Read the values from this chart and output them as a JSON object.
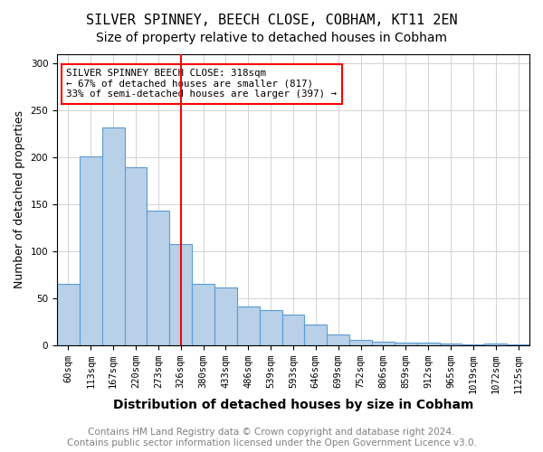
{
  "title": "SILVER SPINNEY, BEECH CLOSE, COBHAM, KT11 2EN",
  "subtitle": "Size of property relative to detached houses in Cobham",
  "xlabel": "Distribution of detached houses by size in Cobham",
  "ylabel": "Number of detached properties",
  "categories": [
    "60sqm",
    "113sqm",
    "167sqm",
    "220sqm",
    "273sqm",
    "326sqm",
    "380sqm",
    "433sqm",
    "486sqm",
    "539sqm",
    "593sqm",
    "646sqm",
    "699sqm",
    "752sqm",
    "806sqm",
    "859sqm",
    "912sqm",
    "965sqm",
    "1019sqm",
    "1072sqm",
    "1125sqm"
  ],
  "values": [
    65,
    201,
    232,
    190,
    143,
    108,
    65,
    62,
    41,
    38,
    33,
    22,
    12,
    6,
    4,
    3,
    3,
    2,
    1,
    2,
    1
  ],
  "bar_color": "#b8d0e8",
  "bar_edge_color": "#5b9bd5",
  "vline_x": 5,
  "vline_color": "red",
  "annotation_title": "SILVER SPINNEY BEECH CLOSE: 318sqm",
  "annotation_line1": "← 67% of detached houses are smaller (817)",
  "annotation_line2": "33% of semi-detached houses are larger (397) →",
  "annotation_box_color": "white",
  "annotation_box_edge": "red",
  "ylim": [
    0,
    310
  ],
  "footer1": "Contains HM Land Registry data © Crown copyright and database right 2024.",
  "footer2": "Contains public sector information licensed under the Open Government Licence v3.0.",
  "title_fontsize": 11,
  "subtitle_fontsize": 10,
  "xlabel_fontsize": 10,
  "ylabel_fontsize": 9,
  "tick_fontsize": 7.5,
  "footer_fontsize": 7.5
}
